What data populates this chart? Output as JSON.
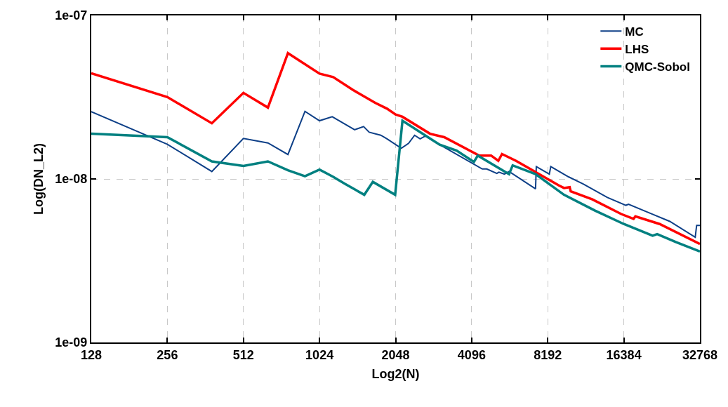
{
  "chart_data": {
    "type": "line",
    "xlabel": "Log2(N)",
    "ylabel": "Log(DN_L2)",
    "log": "xy",
    "grid": true,
    "legend": "top right",
    "line_style": "solid",
    "marker": "none",
    "xlim": [
      128,
      32768
    ],
    "xticks": [
      128,
      256,
      512,
      1024,
      2048,
      4096,
      8192,
      16384,
      32768
    ],
    "ylim": [
      1e-09,
      1e-07
    ],
    "yticks": [
      {
        "value": 1e-09,
        "label": "1e-09"
      },
      {
        "value": 1e-08,
        "label": "1e-08"
      },
      {
        "value": 1e-07,
        "label": "1e-07"
      }
    ],
    "series": [
      {
        "name": "MC",
        "color": "#0d3f87",
        "x": [
          128,
          256,
          384,
          512,
          640,
          768,
          897,
          1024,
          1150,
          1410,
          1530,
          1610,
          1790,
          1894,
          2157,
          2305,
          2435,
          2560,
          2685,
          3060,
          4510,
          4700,
          5150,
          5250,
          5520,
          5760,
          7330,
          7380,
          8310,
          8420,
          9900,
          11340,
          14100,
          16700,
          17100,
          20900,
          24900,
          31400,
          31800,
          32768
        ],
        "values": [
          2.58e-08,
          1.63e-08,
          1.11e-08,
          1.77e-08,
          1.66e-08,
          1.41e-08,
          2.59e-08,
          2.27e-08,
          2.4e-08,
          2e-08,
          2.09e-08,
          1.93e-08,
          1.85e-08,
          1.76e-08,
          1.54e-08,
          1.65e-08,
          1.85e-08,
          1.76e-08,
          1.83e-08,
          1.62e-08,
          1.15e-08,
          1.15e-08,
          1.08e-08,
          1.1e-08,
          1.07e-08,
          1.11e-08,
          8.7e-09,
          1.19e-08,
          1.07e-08,
          1.19e-08,
          1.03e-08,
          9.3e-09,
          7.7e-09,
          6.9e-09,
          7e-09,
          6.15e-09,
          5.5e-09,
          4.4e-09,
          5.2e-09,
          5.2e-09
        ]
      },
      {
        "name": "LHS",
        "color": "#ff0000",
        "x": [
          128,
          256,
          384,
          512,
          640,
          768,
          1024,
          1160,
          1390,
          1700,
          1894,
          2048,
          2180,
          2803,
          3190,
          4390,
          4580,
          4890,
          5220,
          5400,
          6140,
          9090,
          9500,
          10000,
          10100,
          12300,
          16000,
          17900,
          18200,
          22700,
          32768
        ],
        "values": [
          4.43e-08,
          3.17e-08,
          2.19e-08,
          3.36e-08,
          2.73e-08,
          5.88e-08,
          4.41e-08,
          4.2e-08,
          3.5e-08,
          2.92e-08,
          2.69e-08,
          2.48e-08,
          2.4e-08,
          1.89e-08,
          1.8e-08,
          1.39e-08,
          1.39e-08,
          1.39e-08,
          1.29e-08,
          1.42e-08,
          1.29e-08,
          9.1e-09,
          8.8e-09,
          8.9e-09,
          8.4e-09,
          7.5e-09,
          6.1e-09,
          5.7e-09,
          5.9e-09,
          5.3e-09,
          4e-09
        ]
      },
      {
        "name": "QMC-Sobol",
        "color": "#008080",
        "x": [
          128,
          256,
          384,
          512,
          640,
          768,
          897,
          1024,
          1160,
          1295,
          1540,
          1665,
          2040,
          2180,
          3060,
          3570,
          4180,
          4330,
          5760,
          5950,
          7330,
          9500,
          12600,
          16384,
          21300,
          22200,
          26400,
          32768
        ],
        "values": [
          1.89e-08,
          1.8e-08,
          1.28e-08,
          1.2e-08,
          1.28e-08,
          1.13e-08,
          1.04e-08,
          1.14e-08,
          1.03e-08,
          9.3e-09,
          8e-09,
          9.6e-09,
          8e-09,
          2.27e-08,
          1.62e-08,
          1.49e-08,
          1.27e-08,
          1.39e-08,
          1.07e-08,
          1.21e-08,
          1.07e-08,
          8e-09,
          6.4e-09,
          5.3e-09,
          4.5e-09,
          4.6e-09,
          4.1e-09,
          3.6e-09
        ]
      }
    ]
  }
}
